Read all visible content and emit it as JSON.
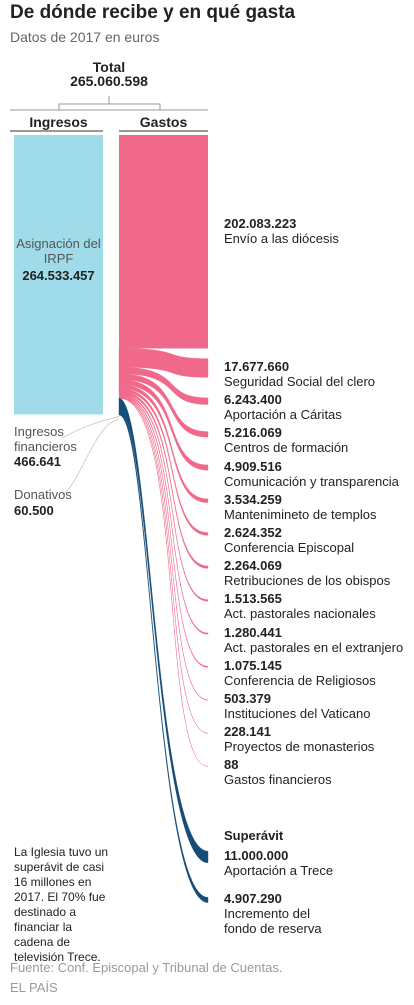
{
  "chart_data": {
    "type": "sankey",
    "title": "De dónde recibe y en qué gasta",
    "subtitle": "Datos de 2017 en euros",
    "total": {
      "label": "Total",
      "value": 265060598,
      "value_label": "265.060.598"
    },
    "left_header": "Ingresos",
    "right_header": "Gastos",
    "income": {
      "categories": [
        "Asignación del IRPF",
        "Ingresos financieros",
        "Donativos"
      ],
      "values": [
        264533457,
        466641,
        60500
      ],
      "value_labels": [
        "264.533.457",
        "466.641",
        "60.500"
      ],
      "color": "#9fdbe9",
      "minor_color": "#c8c8c8"
    },
    "expenses": {
      "categories": [
        "Envío a las diócesis",
        "Seguridad Social del clero",
        "Aportación a Cáritas",
        "Centros de formación",
        "Comunicación y transparencia",
        "Mantenimineto de templos",
        "Conferencia Episcopal",
        "Retribuciones de los obispos",
        "Act. pastorales nacionales",
        "Act. pastorales en el extranjero",
        "Conferencia de Religiosos",
        "Instituciones del Vaticano",
        "Proyectos de monasterios",
        "Gastos financieros"
      ],
      "values": [
        202083223,
        17677660,
        6243400,
        5216069,
        4909516,
        3534259,
        2624352,
        2264069,
        1513565,
        1280441,
        1075145,
        503379,
        228141,
        88
      ],
      "value_labels": [
        "202.083.223",
        "17.677.660",
        "6.243.400",
        "5.216.069",
        "4.909.516",
        "3.534.259",
        "2.624.352",
        "2.264.069",
        "1.513.565",
        "1.280.441",
        "1.075.145",
        "503.379",
        "228.141",
        "88"
      ],
      "color": "#f0698a"
    },
    "surplus": {
      "title": "Superávit",
      "categories": [
        "Aportación a Trece",
        "Incremento del fondo de reserva"
      ],
      "values": [
        11000000,
        4907290
      ],
      "value_labels": [
        "11.000.000",
        "4.907.290"
      ],
      "color": "#164c78"
    },
    "note": "La Iglesia tuvo un superávit de casi 16 millones en 2017. El 70% fue destinado a financiar la cadena de televisión Trece.",
    "source": "Fuente: Conf. Episcopal y Tribunal de Cuentas.",
    "credit": "EL PAÍS"
  }
}
